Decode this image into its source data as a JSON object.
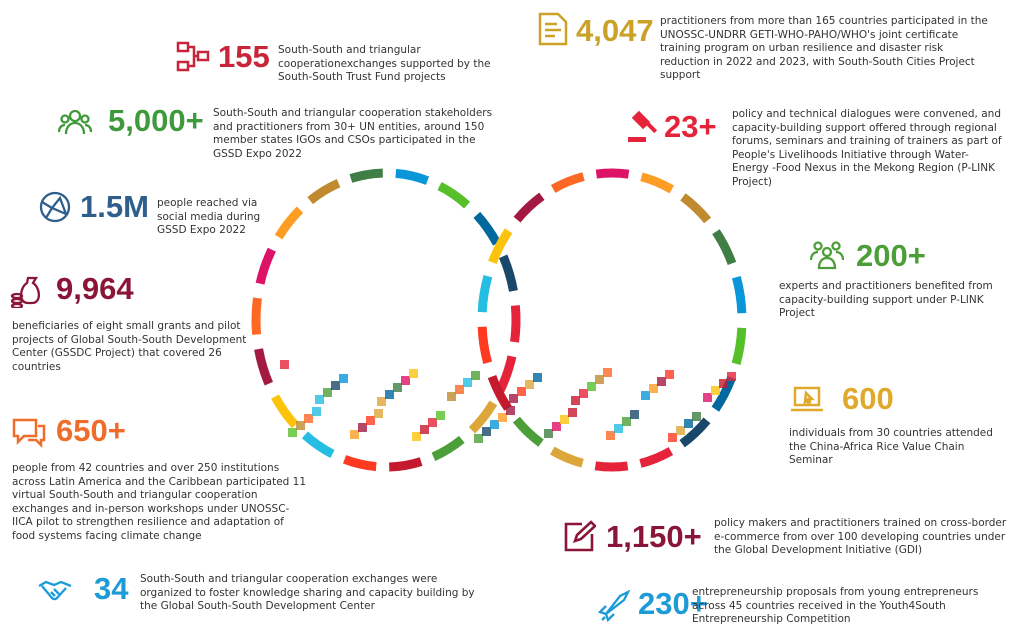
{
  "items": [
    {
      "figure": "155",
      "text": "South-South and triangular cooperationexchanges supported by the South-South Trust Fund projects"
    },
    {
      "figure": "5,000+",
      "text": "South-South and triangular cooperation stakeholders and practitioners from 30+ UN entities, around 150 member states IGOs and CSOs participated in the GSSD Expo 2022"
    },
    {
      "figure": "1.5M",
      "text": "people reached via social media during GSSD Expo 2022"
    },
    {
      "figure": "9,964",
      "text": "beneficiaries of eight small grants and pilot projects of Global South-South Development Center (GSSDC Project) that covered 26 countries"
    },
    {
      "figure": "650+",
      "text": "people from 42 countries and over 250 institutions across Latin America and the Caribbean participated 11 virtual South-South and triangular cooperation exchanges and in-person workshops under UNOSSC-IICA pilot to strengthen resilience and adaptation of food systems facing climate change"
    },
    {
      "figure": "34",
      "text": "South-South and triangular cooperation exchanges were organized to foster knowledge sharing and capacity building by the Global South-South Development Center"
    },
    {
      "figure": "4,047",
      "text": "practitioners from more than 165 countries participated in the UNOSSC-UNDRR GETI-WHO-PAHO/WHO's joint certificate training program on urban resilience and disaster risk reduction in 2022 and 2023, with South-South Cities Project support"
    },
    {
      "figure": "23+",
      "text": "policy and technical dialogues were convened, and capacity-building support offered through regional forums, seminars and training of trainers as part of People's Livelihoods Initiative through Water-Energy -Food Nexus in the Mekong Region (P-LINK Project)"
    },
    {
      "figure": "200+",
      "text": "experts and practitioners benefited from capacity-building support under P-LINK Project"
    },
    {
      "figure": "600",
      "text": "individuals from 30 countries attended the China-Africa Rice Value Chain Seminar"
    },
    {
      "figure": "1,150+",
      "text": "policy makers and practitioners trained on cross-border e-commerce from over 100 developing countries under the Global Development Initiative (GDI)"
    },
    {
      "figure": "230+",
      "text": "entrepreneurship proposals from young entrepreneurs across 45 countries received in the Youth4South Entrepreneurship Competition"
    }
  ]
}
